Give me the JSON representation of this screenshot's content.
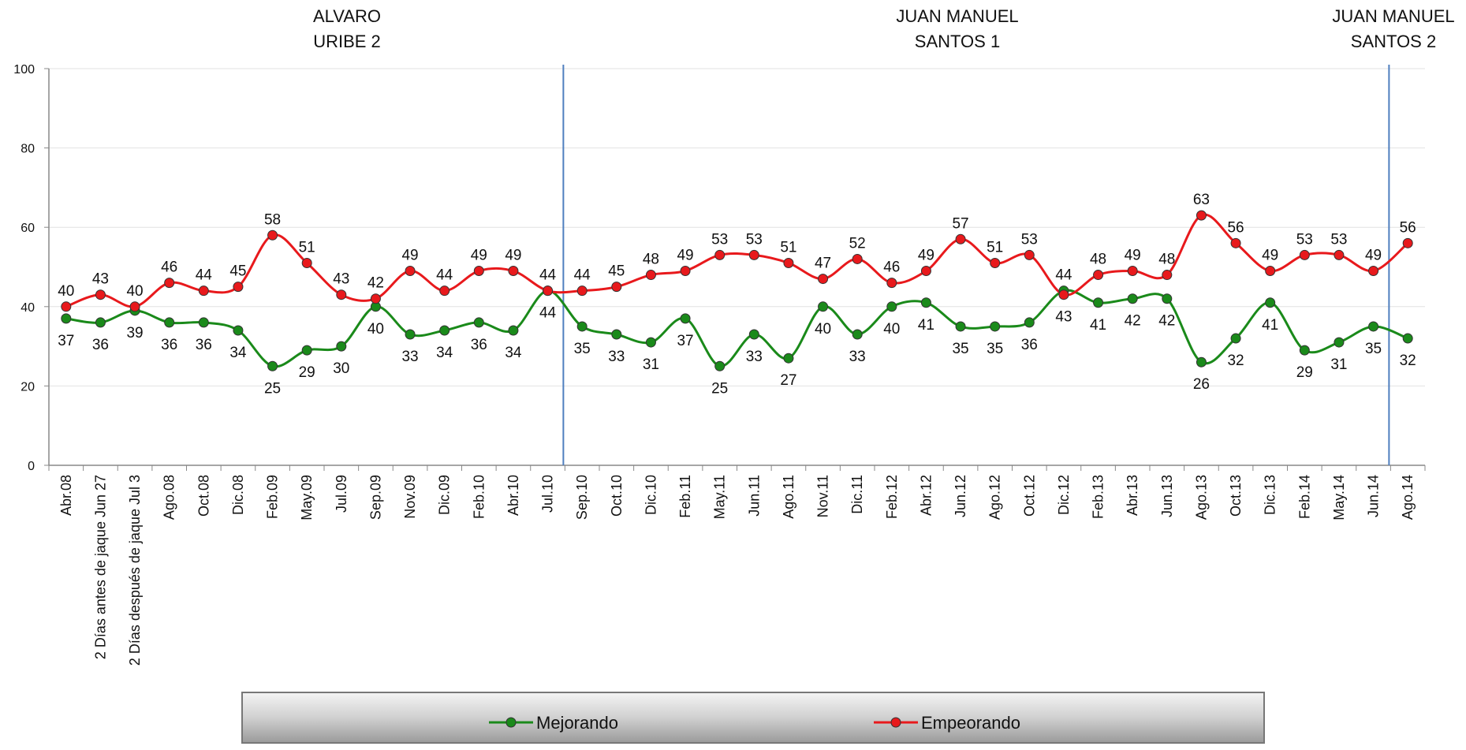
{
  "chart_data": {
    "type": "line",
    "annotations": [
      [
        "ALVARO",
        "URIBE 2"
      ],
      [
        "JUAN MANUEL",
        "SANTOS 1"
      ],
      [
        "JUAN MANUEL",
        "SANTOS 2"
      ]
    ],
    "categories": [
      "Abr.08",
      "2 Días antes de jaque Jun 27",
      "2 Días después de jaque Jul 3",
      "Ago.08",
      "Oct.08",
      "Dic.08",
      "Feb.09",
      "May.09",
      "Jul.09",
      "Sep.09",
      "Nov.09",
      "Dic.09",
      "Feb.10",
      "Abr.10",
      "Jul.10",
      "Sep.10",
      "Oct.10",
      "Dic.10",
      "Feb.11",
      "May.11",
      "Jun.11",
      "Ago.11",
      "Nov.11",
      "Dic.11",
      "Feb.12",
      "Abr.12",
      "Jun.12",
      "Ago.12",
      "Oct.12",
      "Dic.12",
      "Feb.13",
      "Abr.13",
      "Jun.13",
      "Ago.13",
      "Oct.13",
      "Dic.13",
      "Feb.14",
      "May.14",
      "Jun.14",
      "Ago.14"
    ],
    "series": [
      {
        "name": "Mejorando",
        "color": "#1a8a1a",
        "values": [
          37,
          36,
          39,
          36,
          36,
          34,
          25,
          29,
          30,
          40,
          33,
          34,
          36,
          34,
          44,
          35,
          33,
          31,
          37,
          25,
          33,
          27,
          40,
          33,
          40,
          41,
          35,
          35,
          36,
          44,
          41,
          42,
          42,
          26,
          32,
          41,
          29,
          31,
          35,
          32
        ]
      },
      {
        "name": "Empeorando",
        "color": "#e8191c",
        "values": [
          40,
          43,
          40,
          46,
          44,
          45,
          58,
          51,
          43,
          42,
          49,
          44,
          49,
          49,
          44,
          44,
          45,
          48,
          49,
          53,
          53,
          51,
          47,
          52,
          46,
          49,
          57,
          51,
          53,
          43,
          48,
          49,
          48,
          63,
          56,
          49,
          53,
          53,
          49,
          56
        ]
      }
    ],
    "ylim": [
      0,
      100
    ],
    "yticks": [
      0,
      20,
      40,
      60,
      80,
      100
    ],
    "grid": true
  }
}
